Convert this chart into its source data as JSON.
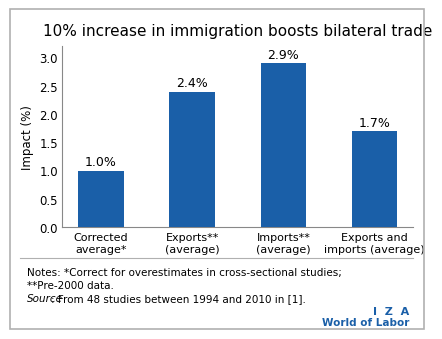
{
  "title": "10% increase in immigration boosts bilateral trade",
  "categories": [
    "Corrected\naverage*",
    "Exports**\n(average)",
    "Imports**\n(average)",
    "Exports and\nimports (average)"
  ],
  "values": [
    1.0,
    2.4,
    2.9,
    1.7
  ],
  "labels": [
    "1.0%",
    "2.4%",
    "2.9%",
    "1.7%"
  ],
  "bar_color": "#1a5fa8",
  "ylabel": "Impact (%)",
  "ylim": [
    0,
    3.2
  ],
  "yticks": [
    0.0,
    0.5,
    1.0,
    1.5,
    2.0,
    2.5,
    3.0
  ],
  "notes_line1": "Notes: *Correct for overestimates in cross-sectional studies;",
  "notes_line2": "**Pre-2000 data.",
  "source_italic": "Source",
  "source_rest": ": From 48 studies between 1994 and 2010 in [1].",
  "iza_text": "I  Z  A",
  "wol_text": "World of Labor",
  "border_color": "#b0b0b0",
  "title_fontsize": 11,
  "label_fontsize": 9,
  "tick_fontsize": 8.5,
  "note_fontsize": 7.5,
  "iza_color": "#1a5fa8"
}
